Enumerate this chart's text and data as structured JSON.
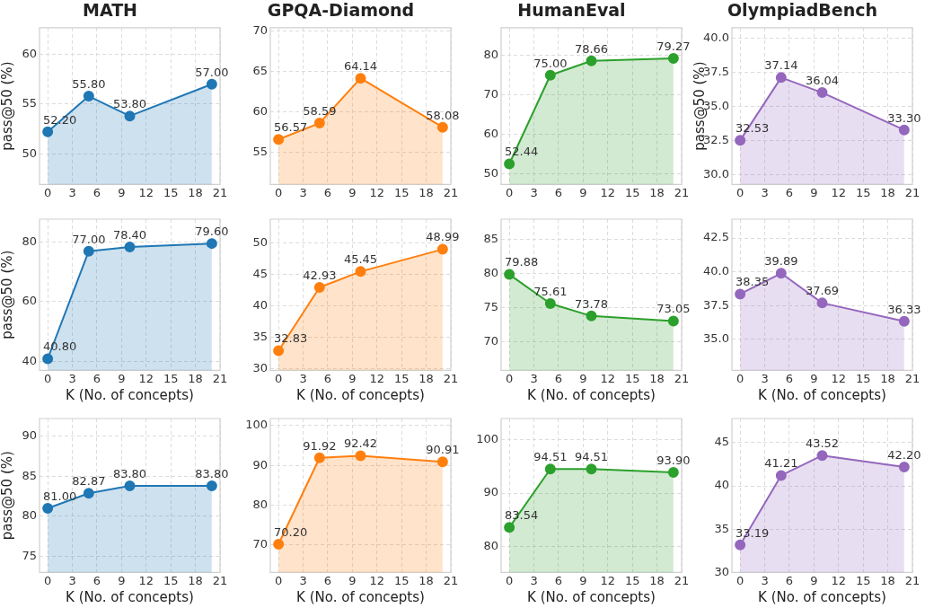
{
  "chart_data": [
    {
      "type": "area",
      "title": "MATH",
      "ylabel": "pass@50 (%)",
      "x": [
        0,
        5,
        10,
        20
      ],
      "values": [
        52.2,
        55.8,
        53.8,
        57.0
      ],
      "value_labels": [
        "52.20",
        "55.80",
        "53.80",
        "57.00"
      ],
      "color": "#1f77b4",
      "xlim": [
        -1,
        21
      ],
      "xticks": [
        0,
        3,
        6,
        9,
        12,
        15,
        18,
        21
      ],
      "ylim": [
        46.9,
        62.7
      ],
      "yticks": [
        50,
        55,
        60
      ],
      "grid": true,
      "marker": "circle"
    },
    {
      "type": "area",
      "title": "GPQA-Diamond",
      "x": [
        0,
        5,
        10,
        20
      ],
      "values": [
        56.57,
        58.59,
        64.14,
        58.08
      ],
      "value_labels": [
        "56.57",
        "58.59",
        "64.14",
        "58.08"
      ],
      "color": "#ff7f0e",
      "xlim": [
        -1,
        21
      ],
      "xticks": [
        0,
        3,
        6,
        9,
        12,
        15,
        18,
        21
      ],
      "ylim": [
        51.0,
        70.4
      ],
      "yticks": [
        55,
        60,
        65,
        70
      ],
      "grid": true,
      "marker": "circle"
    },
    {
      "type": "area",
      "title": "HumanEval",
      "x": [
        0,
        5,
        10,
        20
      ],
      "values": [
        52.44,
        75.0,
        78.66,
        79.27
      ],
      "value_labels": [
        "52.44",
        "75.00",
        "78.66",
        "79.27"
      ],
      "color": "#2ca02c",
      "xlim": [
        -1,
        21
      ],
      "xticks": [
        0,
        3,
        6,
        9,
        12,
        15,
        18,
        21
      ],
      "ylim": [
        47.2,
        87.1
      ],
      "yticks": [
        50,
        60,
        70,
        80
      ],
      "grid": true,
      "marker": "circle"
    },
    {
      "type": "area",
      "title": "OlympiadBench",
      "ylabel": "pass@50 (%)",
      "x": [
        0,
        5,
        10,
        20
      ],
      "values": [
        32.53,
        37.14,
        36.04,
        33.3
      ],
      "value_labels": [
        "32.53",
        "37.14",
        "36.04",
        "33.30"
      ],
      "color": "#9467bd",
      "xlim": [
        -1,
        21
      ],
      "xticks": [
        0,
        3,
        6,
        9,
        12,
        15,
        18,
        21
      ],
      "ylim": [
        29.3,
        40.8
      ],
      "yticks": [
        {
          "value": 30,
          "label": "30.0"
        },
        {
          "value": 32.5,
          "label": "32.5"
        },
        {
          "value": 35,
          "label": "35.0"
        },
        {
          "value": 37.5,
          "label": "37.5"
        },
        {
          "value": 40,
          "label": "40.0"
        }
      ],
      "grid": true,
      "marker": "circle"
    },
    {
      "type": "area",
      "xlabel": "K (No. of concepts)",
      "ylabel": "pass@50 (%)",
      "x": [
        0,
        5,
        10,
        20
      ],
      "values": [
        40.8,
        77.0,
        78.4,
        79.6
      ],
      "value_labels": [
        "40.80",
        "77.00",
        "78.40",
        "79.60"
      ],
      "color": "#1f77b4",
      "xlim": [
        -1,
        21
      ],
      "xticks": [
        0,
        3,
        6,
        9,
        12,
        15,
        18,
        21
      ],
      "ylim": [
        36.9,
        87.8
      ],
      "yticks": [
        40,
        60,
        80
      ],
      "grid": true,
      "marker": "circle"
    },
    {
      "type": "area",
      "xlabel": "K (No. of concepts)",
      "x": [
        0,
        5,
        10,
        20
      ],
      "values": [
        32.83,
        42.93,
        45.45,
        48.99
      ],
      "value_labels": [
        "32.83",
        "42.93",
        "45.45",
        "48.99"
      ],
      "color": "#ff7f0e",
      "xlim": [
        -1,
        21
      ],
      "xticks": [
        0,
        3,
        6,
        9,
        12,
        15,
        18,
        21
      ],
      "ylim": [
        29.7,
        53.8
      ],
      "yticks": [
        30,
        35,
        40,
        45,
        50
      ],
      "grid": true,
      "marker": "circle"
    },
    {
      "type": "area",
      "xlabel": "K (No. of concepts)",
      "x": [
        0,
        5,
        10,
        20
      ],
      "values": [
        79.88,
        75.61,
        73.78,
        73.05
      ],
      "value_labels": [
        "79.88",
        "75.61",
        "73.78",
        "73.05"
      ],
      "color": "#2ca02c",
      "xlim": [
        -1,
        21
      ],
      "xticks": [
        0,
        3,
        6,
        9,
        12,
        15,
        18,
        21
      ],
      "ylim": [
        65.8,
        88.0
      ],
      "yticks": [
        70,
        75,
        80,
        85
      ],
      "grid": true,
      "marker": "circle"
    },
    {
      "type": "area",
      "xlabel": "K (No. of concepts)",
      "x": [
        0,
        5,
        10,
        20
      ],
      "values": [
        38.35,
        39.89,
        37.69,
        36.33
      ],
      "value_labels": [
        "38.35",
        "39.89",
        "37.69",
        "36.33"
      ],
      "color": "#9467bd",
      "xlim": [
        -1,
        21
      ],
      "xticks": [
        0,
        3,
        6,
        9,
        12,
        15,
        18,
        21
      ],
      "ylim": [
        32.7,
        43.9
      ],
      "yticks": [
        {
          "value": 35,
          "label": "35.0"
        },
        {
          "value": 37.5,
          "label": "37.5"
        },
        {
          "value": 40,
          "label": "40.0"
        },
        {
          "value": 42.5,
          "label": "42.5"
        }
      ],
      "grid": true,
      "marker": "circle"
    },
    {
      "type": "area",
      "xlabel": "K (No. of concepts)",
      "ylabel": "pass@50 (%)",
      "x": [
        0,
        5,
        10,
        20
      ],
      "values": [
        81.0,
        82.87,
        83.8,
        83.8
      ],
      "value_labels": [
        "81.00",
        "82.87",
        "83.80",
        "83.80"
      ],
      "color": "#1f77b4",
      "xlim": [
        -1,
        21
      ],
      "xticks": [
        0,
        3,
        6,
        9,
        12,
        15,
        18,
        21
      ],
      "ylim": [
        73.0,
        92.2
      ],
      "yticks": [
        75,
        80,
        85,
        90
      ],
      "grid": true,
      "marker": "circle"
    },
    {
      "type": "area",
      "xlabel": "K (No. of concepts)",
      "x": [
        0,
        5,
        10,
        20
      ],
      "values": [
        70.2,
        91.92,
        92.42,
        90.91
      ],
      "value_labels": [
        "70.20",
        "91.92",
        "92.42",
        "90.91"
      ],
      "color": "#ff7f0e",
      "xlim": [
        -1,
        21
      ],
      "xticks": [
        0,
        3,
        6,
        9,
        12,
        15,
        18,
        21
      ],
      "ylim": [
        63.1,
        101.8
      ],
      "yticks": [
        70,
        80,
        90,
        100
      ],
      "grid": true,
      "marker": "circle"
    },
    {
      "type": "area",
      "xlabel": "K (No. of concepts)",
      "x": [
        0,
        5,
        10,
        20
      ],
      "values": [
        83.54,
        94.51,
        94.51,
        93.9
      ],
      "value_labels": [
        "83.54",
        "94.51",
        "94.51",
        "93.90"
      ],
      "color": "#2ca02c",
      "xlim": [
        -1,
        21
      ],
      "xticks": [
        0,
        3,
        6,
        9,
        12,
        15,
        18,
        21
      ],
      "ylim": [
        75.1,
        104.0
      ],
      "yticks": [
        80,
        90,
        100
      ],
      "grid": true,
      "marker": "circle"
    },
    {
      "type": "area",
      "xlabel": "K (No. of concepts)",
      "x": [
        0,
        5,
        10,
        20
      ],
      "values": [
        33.19,
        41.21,
        43.52,
        42.2
      ],
      "value_labels": [
        "33.19",
        "41.21",
        "43.52",
        "42.20"
      ],
      "color": "#9467bd",
      "xlim": [
        -1,
        21
      ],
      "xticks": [
        0,
        3,
        6,
        9,
        12,
        15,
        18,
        21
      ],
      "ylim": [
        30.0,
        47.8
      ],
      "yticks": [
        30,
        35,
        40,
        45
      ],
      "grid": true,
      "marker": "circle"
    }
  ]
}
